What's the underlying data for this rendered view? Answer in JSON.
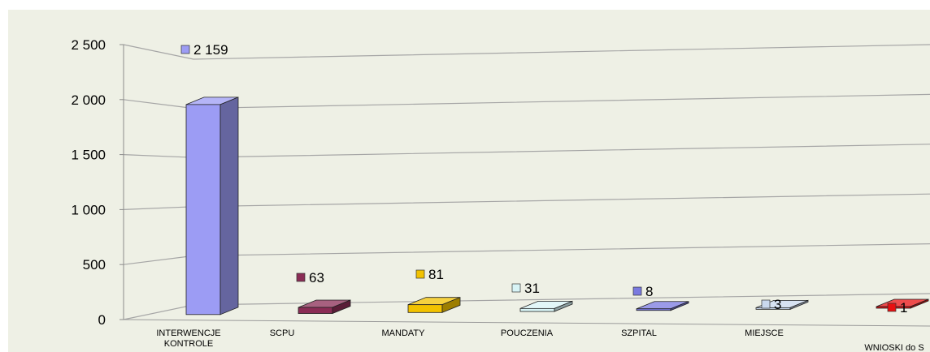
{
  "chart_data": {
    "type": "bar",
    "categories": [
      "INTERWENCJE KONTROLE",
      "SCPU",
      "MANDATY",
      "POUCZENIA",
      "SZPITAL",
      "MIEJSCE",
      "WNIOSKI do S"
    ],
    "category_lines": [
      [
        "INTERWENCJE",
        "KONTROLE"
      ],
      [
        "SCPU"
      ],
      [
        "MANDATY"
      ],
      [
        "POUCZENIA"
      ],
      [
        "SZPITAL"
      ],
      [
        "MIEJSCE"
      ],
      [
        "WNIOSKI do S"
      ]
    ],
    "values": [
      2159,
      63,
      81,
      31,
      8,
      3,
      1
    ],
    "value_labels": [
      "2 159",
      "63",
      "81",
      "31",
      "8",
      "3",
      "1"
    ],
    "colors": [
      "#9c9cf4",
      "#8a2c55",
      "#f2c200",
      "#d8f4f6",
      "#7a7ae0",
      "#c9d8ee",
      "#e81010"
    ],
    "y_ticks": [
      {
        "value": 0,
        "label": "0"
      },
      {
        "value": 500,
        "label": "500"
      },
      {
        "value": 1000,
        "label": "1 000"
      },
      {
        "value": 1500,
        "label": "1 500"
      },
      {
        "value": 2000,
        "label": "2 000"
      },
      {
        "value": 2500,
        "label": "2 500"
      }
    ],
    "ylim": [
      0,
      2500
    ],
    "title": "",
    "xlabel": "",
    "ylabel": "",
    "grid": true,
    "legend": "none",
    "plot_background": "#eef0e5"
  }
}
